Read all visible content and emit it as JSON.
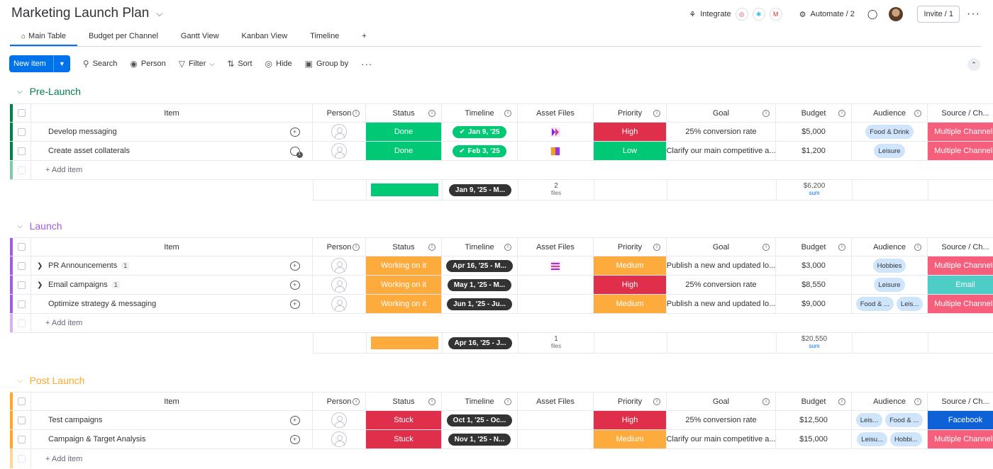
{
  "board": {
    "title": "Marketing Launch Plan",
    "integrate_label": "Integrate",
    "automate_label": "Automate / 2",
    "invite_label": "Invite / 1"
  },
  "tabs": [
    {
      "label": "Main Table"
    },
    {
      "label": "Budget per Channel"
    },
    {
      "label": "Gantt View"
    },
    {
      "label": "Kanban View"
    },
    {
      "label": "Timeline"
    },
    {
      "label": "+"
    }
  ],
  "toolbar": {
    "new_item": "New item",
    "search": "Search",
    "person": "Person",
    "filter": "Filter",
    "sort": "Sort",
    "hide": "Hide",
    "group_by": "Group by"
  },
  "columns": {
    "item": "Item",
    "person": "Person",
    "status": "Status",
    "timeline": "Timeline",
    "asset": "Asset Files",
    "priority": "Priority",
    "goal": "Goal",
    "budget": "Budget",
    "audience": "Audience",
    "source": "Source / Ch..."
  },
  "colors": {
    "done": "#00c875",
    "working": "#fdab3d",
    "stuck": "#df2f4a",
    "high": "#df2f4a",
    "medium": "#fdab3d",
    "low": "#00c875",
    "multiple": "#f65f7c",
    "email": "#4eccc6",
    "facebook": "#0f62d6",
    "prelaunch": "#037f4c",
    "launch": "#a25ddc",
    "postlaunch": "#ffa62b"
  },
  "groups": [
    {
      "title": "Pre-Launch",
      "add_item": "+ Add item",
      "rows": [
        {
          "name": "Develop messaging",
          "status": "Done",
          "timeline": "Jan 9, '25",
          "priority": "High",
          "goal": "25% conversion rate",
          "budget": "$5,000",
          "audience": [
            "Food & Drink"
          ],
          "source": "Multiple Channels"
        },
        {
          "name": "Create asset collaterals",
          "conv_count": "1",
          "status": "Done",
          "timeline": "Feb 3, '25",
          "priority": "Low",
          "goal": "Clarify our main competitive a...",
          "budget": "$1,200",
          "audience": [
            "Leisure"
          ],
          "source": "Multiple Channels"
        }
      ],
      "summary": {
        "timeline": "Jan 9, '25 - M...",
        "files_count": "2",
        "files_label": "files",
        "budget": "$6,200",
        "budget_label": "sum"
      }
    },
    {
      "title": "Launch",
      "add_item": "+ Add item",
      "rows": [
        {
          "name": "PR Announcements",
          "sub": "1",
          "status": "Working on it",
          "timeline": "Apr 16, '25 - M...",
          "priority": "Medium",
          "goal": "Publish a new and updated lo...",
          "budget": "$3,000",
          "audience": [
            "Hobbies"
          ],
          "source": "Multiple Channels"
        },
        {
          "name": "Email campaigns",
          "sub": "1",
          "status": "Working on it",
          "timeline": "May 1, '25 - M...",
          "priority": "High",
          "goal": "25% conversion rate",
          "budget": "$8,550",
          "audience": [
            "Leisure"
          ],
          "source": "Email"
        },
        {
          "name": "Optimize strategy & messaging",
          "status": "Working on it",
          "timeline": "Jun 1, '25 - Ju...",
          "priority": "Medium",
          "goal": "Publish a new and updated lo...",
          "budget": "$9,000",
          "audience": [
            "Food & ...",
            "Leis..."
          ],
          "source": "Multiple Channels"
        }
      ],
      "summary": {
        "timeline": "Apr 16, '25 - J...",
        "files_count": "1",
        "files_label": "files",
        "budget": "$20,550",
        "budget_label": "sum"
      }
    },
    {
      "title": "Post Launch",
      "add_item": "+ Add item",
      "rows": [
        {
          "name": "Test campaigns",
          "status": "Stuck",
          "timeline": "Oct 1, '25 - Oc...",
          "priority": "High",
          "goal": "25% conversion rate",
          "budget": "$12,500",
          "audience": [
            "Leis...",
            "Food & ..."
          ],
          "source": "Facebook"
        },
        {
          "name": "Campaign & Target Analysis",
          "status": "Stuck",
          "timeline": "Nov 1, '25 - N...",
          "priority": "Medium",
          "goal": "Clarify our main competitive a...",
          "budget": "$15,000",
          "audience": [
            "Leisu...",
            "Hobbi..."
          ],
          "source": "Multiple Channels"
        }
      ]
    }
  ]
}
